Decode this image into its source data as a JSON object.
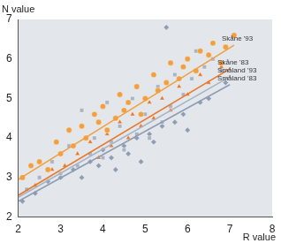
{
  "chart_data": {
    "type": "scatter",
    "x_label": "R value",
    "y_label": "N value",
    "xlim": [
      2,
      8
    ],
    "xticks": [
      2,
      3,
      4,
      5,
      6,
      7,
      8
    ],
    "ylim": [
      2,
      7
    ],
    "yticks": [
      2,
      3,
      4,
      5,
      6,
      7
    ],
    "grid": false,
    "series": [
      {
        "name": "Skåne '93",
        "color": "#f0a040",
        "marker": "circle",
        "line_style": "solid",
        "x": [
          2.1,
          2.3,
          2.5,
          2.7,
          2.9,
          3.0,
          3.2,
          3.3,
          3.5,
          3.6,
          3.8,
          3.9,
          4.0,
          4.1,
          4.3,
          4.4,
          4.5,
          4.6,
          4.8,
          4.9,
          5.0,
          5.2,
          5.3,
          5.5,
          5.6,
          5.8,
          5.9,
          6.0,
          6.2,
          6.3,
          6.5,
          6.6,
          6.8,
          6.9,
          7.1
        ],
        "values": [
          3.0,
          3.3,
          3.4,
          3.2,
          3.9,
          3.6,
          4.2,
          3.8,
          4.3,
          4.0,
          4.6,
          4.4,
          4.8,
          4.2,
          4.5,
          5.1,
          4.7,
          4.9,
          5.3,
          4.6,
          5.0,
          5.6,
          5.2,
          5.4,
          5.9,
          5.5,
          5.8,
          6.0,
          5.7,
          6.2,
          6.1,
          6.4,
          5.9,
          6.3,
          6.6
        ],
        "fit_x": [
          2,
          7.1
        ],
        "fit_y": [
          2.95,
          6.35
        ]
      },
      {
        "name": "Skåne '83",
        "color": "#e8782a",
        "marker": "triangle",
        "line_style": "solid",
        "x": [
          2.4,
          2.8,
          3.1,
          3.4,
          3.7,
          3.9,
          4.1,
          4.2,
          4.4,
          4.6,
          4.7,
          4.9,
          5.1,
          5.2,
          5.4,
          5.6,
          5.8,
          6.0,
          6.3,
          6.5,
          6.8
        ],
        "values": [
          2.8,
          3.2,
          3.3,
          3.6,
          3.9,
          3.5,
          4.1,
          3.8,
          4.4,
          4.0,
          4.6,
          4.3,
          4.9,
          4.5,
          5.0,
          4.7,
          5.3,
          5.1,
          5.6,
          5.4,
          5.8
        ],
        "fit_x": [
          2,
          7
        ],
        "fit_y": [
          2.55,
          5.75
        ]
      },
      {
        "name": "Småland '93",
        "color": "#a8b4c4",
        "marker": "rect",
        "line_style": "solid",
        "x": [
          2.2,
          2.5,
          2.8,
          3.0,
          3.2,
          3.4,
          3.5,
          3.7,
          3.8,
          4.0,
          4.1,
          4.2,
          4.4,
          4.5,
          4.7,
          4.8,
          5.0,
          5.1,
          5.3,
          5.4,
          5.6,
          5.7,
          5.9,
          6.1,
          6.2,
          6.4,
          6.6,
          6.8
        ],
        "values": [
          2.7,
          3.0,
          3.4,
          3.1,
          3.8,
          3.3,
          4.7,
          3.6,
          4.0,
          3.5,
          4.9,
          3.9,
          4.3,
          3.7,
          5.0,
          4.1,
          4.6,
          4.0,
          5.3,
          4.4,
          4.8,
          5.6,
          5.1,
          5.5,
          6.2,
          5.8,
          6.0,
          5.7
        ],
        "fit_x": [
          2,
          7
        ],
        "fit_y": [
          2.5,
          5.55
        ]
      },
      {
        "name": "Småland '83",
        "color": "#8f9db3",
        "marker": "rectRot",
        "line_style": "solid",
        "x": [
          2.1,
          2.4,
          2.7,
          3.0,
          3.3,
          3.5,
          3.7,
          3.9,
          4.0,
          4.2,
          4.3,
          4.5,
          4.6,
          4.8,
          4.9,
          5.1,
          5.2,
          5.4,
          5.5,
          5.7,
          5.9,
          6.0,
          6.3,
          6.5,
          6.9
        ],
        "values": [
          2.4,
          2.6,
          2.9,
          3.0,
          3.2,
          3.0,
          3.4,
          3.3,
          3.7,
          3.5,
          3.2,
          3.8,
          3.6,
          4.0,
          3.4,
          4.1,
          3.9,
          4.3,
          6.8,
          4.4,
          4.6,
          4.2,
          4.9,
          5.0,
          5.4
        ],
        "fit_x": [
          2,
          7
        ],
        "fit_y": [
          2.4,
          5.35
        ]
      }
    ]
  }
}
